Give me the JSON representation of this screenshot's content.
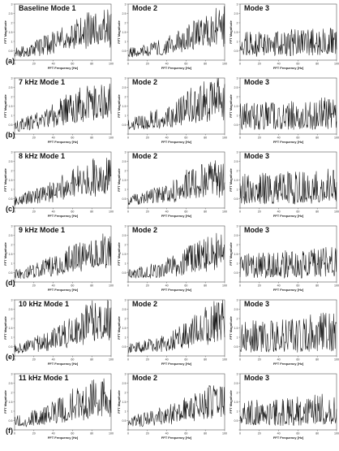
{
  "figure": {
    "row_labels": [
      "(a)",
      "(b)",
      "(c)",
      "(d)",
      "(e)",
      "(f)"
    ],
    "row_titles": [
      "Baseline Mode 1",
      "7 kHz Mode 1",
      "8 kHz Mode 1",
      "9 kHz Mode 1",
      "10 kHz Mode 1",
      "11 kHz Mode 1"
    ],
    "column_titles": [
      "",
      "Mode 2",
      "Mode 3"
    ]
  },
  "axes": {
    "xlabel": "FFT Frequency [Hz]",
    "ylabel": "FFT Magnitude",
    "xticks": [
      0,
      20,
      40,
      60,
      80,
      100
    ],
    "yticks": [
      0,
      0.5,
      1,
      1.5,
      2,
      2.5,
      3
    ],
    "ytick_labels": [
      "",
      "0.5",
      "1",
      "1.5",
      "2",
      "2.5",
      "3"
    ]
  },
  "chart_data": {
    "type": "line",
    "grid": false,
    "xlim": [
      0,
      100
    ],
    "ylim": [
      0,
      3
    ],
    "panels": [
      {
        "row": 0,
        "col": 0,
        "title": "Baseline Mode 1",
        "envelope": {
          "x": [
            0,
            20,
            40,
            60,
            80,
            100
          ],
          "low": [
            0.2,
            0.3,
            0.5,
            0.8,
            1.0,
            1.1
          ],
          "high": [
            0.6,
            0.9,
            1.4,
            2.0,
            2.4,
            2.5
          ]
        }
      },
      {
        "row": 0,
        "col": 1,
        "title": "Mode 2",
        "envelope": {
          "x": [
            0,
            20,
            40,
            60,
            80,
            100
          ],
          "low": [
            0.2,
            0.3,
            0.4,
            0.7,
            0.9,
            1.0
          ],
          "high": [
            0.6,
            0.8,
            1.1,
            1.7,
            2.3,
            2.7
          ]
        }
      },
      {
        "row": 0,
        "col": 2,
        "title": "Mode 3",
        "envelope": {
          "x": [
            0,
            20,
            40,
            60,
            80,
            100
          ],
          "low": [
            0.3,
            0.3,
            0.3,
            0.3,
            0.4,
            0.4
          ],
          "high": [
            1.4,
            1.5,
            1.5,
            1.6,
            1.6,
            1.7
          ]
        }
      },
      {
        "row": 1,
        "col": 0,
        "title": "7 kHz Mode 1",
        "envelope": {
          "x": [
            0,
            20,
            40,
            60,
            80,
            100
          ],
          "low": [
            0.2,
            0.3,
            0.5,
            0.8,
            1.0,
            1.1
          ],
          "high": [
            0.7,
            1.0,
            1.5,
            2.1,
            2.4,
            2.5
          ]
        }
      },
      {
        "row": 1,
        "col": 1,
        "title": "Mode 2",
        "envelope": {
          "x": [
            0,
            20,
            40,
            60,
            80,
            100
          ],
          "low": [
            0.3,
            0.4,
            0.5,
            0.8,
            1.0,
            1.1
          ],
          "high": [
            0.8,
            1.0,
            1.4,
            2.1,
            2.6,
            2.8
          ]
        }
      },
      {
        "row": 1,
        "col": 2,
        "title": "Mode 3",
        "envelope": {
          "x": [
            0,
            20,
            40,
            60,
            80,
            100
          ],
          "low": [
            0.3,
            0.3,
            0.3,
            0.3,
            0.4,
            0.4
          ],
          "high": [
            1.6,
            1.6,
            1.7,
            1.7,
            1.8,
            1.9
          ]
        }
      },
      {
        "row": 2,
        "col": 0,
        "title": "8 kHz Mode 1",
        "envelope": {
          "x": [
            0,
            20,
            40,
            60,
            80,
            100
          ],
          "low": [
            0.2,
            0.3,
            0.5,
            0.7,
            0.9,
            1.0
          ],
          "high": [
            0.6,
            0.9,
            1.3,
            1.9,
            2.3,
            2.5
          ]
        }
      },
      {
        "row": 2,
        "col": 1,
        "title": "Mode 2",
        "envelope": {
          "x": [
            0,
            20,
            40,
            60,
            80,
            100
          ],
          "low": [
            0.2,
            0.3,
            0.4,
            0.6,
            0.8,
            0.9
          ],
          "high": [
            0.6,
            0.9,
            1.2,
            1.8,
            2.2,
            2.4
          ]
        }
      },
      {
        "row": 2,
        "col": 2,
        "title": "Mode 3",
        "envelope": {
          "x": [
            0,
            20,
            40,
            60,
            80,
            100
          ],
          "low": [
            0.3,
            0.3,
            0.3,
            0.3,
            0.4,
            0.4
          ],
          "high": [
            1.8,
            1.8,
            1.8,
            1.9,
            1.9,
            2.0
          ]
        }
      },
      {
        "row": 3,
        "col": 0,
        "title": "9 kHz Mode 1",
        "envelope": {
          "x": [
            0,
            20,
            40,
            60,
            80,
            100
          ],
          "low": [
            0.2,
            0.3,
            0.5,
            0.7,
            0.9,
            1.0
          ],
          "high": [
            0.6,
            0.9,
            1.3,
            1.8,
            2.1,
            2.3
          ]
        }
      },
      {
        "row": 3,
        "col": 1,
        "title": "Mode 2",
        "envelope": {
          "x": [
            0,
            20,
            40,
            60,
            80,
            100
          ],
          "low": [
            0.2,
            0.3,
            0.4,
            0.6,
            0.8,
            0.9
          ],
          "high": [
            0.6,
            0.8,
            1.2,
            1.8,
            2.3,
            2.5
          ]
        }
      },
      {
        "row": 3,
        "col": 2,
        "title": "Mode 3",
        "envelope": {
          "x": [
            0,
            20,
            40,
            60,
            80,
            100
          ],
          "low": [
            0.3,
            0.3,
            0.3,
            0.3,
            0.4,
            0.4
          ],
          "high": [
            1.5,
            1.5,
            1.6,
            1.6,
            1.7,
            2.0
          ]
        }
      },
      {
        "row": 4,
        "col": 0,
        "title": "10 kHz Mode 1",
        "envelope": {
          "x": [
            0,
            20,
            40,
            60,
            80,
            100
          ],
          "low": [
            0.2,
            0.3,
            0.5,
            0.8,
            1.0,
            1.1
          ],
          "high": [
            0.6,
            0.9,
            1.3,
            2.0,
            2.6,
            2.8
          ]
        }
      },
      {
        "row": 4,
        "col": 1,
        "title": "Mode 2",
        "envelope": {
          "x": [
            0,
            20,
            40,
            60,
            80,
            100
          ],
          "low": [
            0.2,
            0.3,
            0.4,
            0.6,
            0.9,
            1.0
          ],
          "high": [
            0.6,
            0.8,
            1.1,
            1.7,
            2.4,
            2.9
          ]
        }
      },
      {
        "row": 4,
        "col": 2,
        "title": "Mode 3",
        "envelope": {
          "x": [
            0,
            20,
            40,
            60,
            80,
            100
          ],
          "low": [
            0.3,
            0.3,
            0.3,
            0.3,
            0.4,
            0.4
          ],
          "high": [
            1.8,
            1.9,
            1.9,
            2.0,
            2.2,
            2.4
          ]
        }
      },
      {
        "row": 5,
        "col": 0,
        "title": "11 kHz Mode 1",
        "envelope": {
          "x": [
            0,
            20,
            40,
            60,
            80,
            100
          ],
          "low": [
            0.2,
            0.3,
            0.5,
            0.7,
            0.9,
            1.0
          ],
          "high": [
            0.7,
            1.0,
            1.4,
            2.0,
            2.4,
            2.5
          ]
        }
      },
      {
        "row": 5,
        "col": 1,
        "title": "Mode 2",
        "envelope": {
          "x": [
            0,
            20,
            40,
            60,
            80,
            100
          ],
          "low": [
            0.2,
            0.3,
            0.4,
            0.6,
            0.8,
            0.9
          ],
          "high": [
            0.6,
            0.9,
            1.2,
            1.6,
            2.1,
            2.4
          ]
        }
      },
      {
        "row": 5,
        "col": 2,
        "title": "Mode 3",
        "envelope": {
          "x": [
            0,
            20,
            40,
            60,
            80,
            100
          ],
          "low": [
            0.3,
            0.3,
            0.3,
            0.3,
            0.4,
            0.4
          ],
          "high": [
            1.5,
            1.6,
            1.6,
            1.7,
            1.8,
            2.0
          ]
        }
      }
    ]
  }
}
